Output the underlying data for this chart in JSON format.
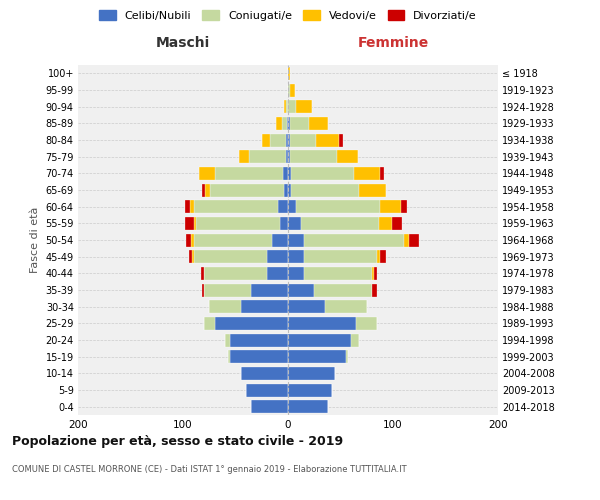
{
  "age_groups": [
    "0-4",
    "5-9",
    "10-14",
    "15-19",
    "20-24",
    "25-29",
    "30-34",
    "35-39",
    "40-44",
    "45-49",
    "50-54",
    "55-59",
    "60-64",
    "65-69",
    "70-74",
    "75-79",
    "80-84",
    "85-89",
    "90-94",
    "95-99",
    "100+"
  ],
  "birth_years": [
    "2014-2018",
    "2009-2013",
    "2004-2008",
    "1999-2003",
    "1994-1998",
    "1989-1993",
    "1984-1988",
    "1979-1983",
    "1974-1978",
    "1969-1973",
    "1964-1968",
    "1959-1963",
    "1954-1958",
    "1949-1953",
    "1944-1948",
    "1939-1943",
    "1934-1938",
    "1929-1933",
    "1924-1928",
    "1919-1923",
    "≤ 1918"
  ],
  "colors": {
    "celibi": "#4472c4",
    "coniugati": "#c5d9a0",
    "vedovi": "#ffc000",
    "divorziati": "#cc0000"
  },
  "maschi": {
    "celibi": [
      35,
      40,
      45,
      55,
      55,
      70,
      45,
      35,
      20,
      20,
      15,
      8,
      10,
      4,
      5,
      2,
      2,
      1,
      0,
      0,
      0
    ],
    "coniugati": [
      0,
      0,
      0,
      2,
      5,
      10,
      30,
      45,
      60,
      70,
      75,
      80,
      80,
      70,
      65,
      35,
      15,
      5,
      2,
      0,
      0
    ],
    "vedovi": [
      0,
      0,
      0,
      0,
      0,
      0,
      0,
      0,
      0,
      1,
      2,
      2,
      3,
      5,
      15,
      10,
      8,
      5,
      2,
      0,
      0
    ],
    "divorziati": [
      0,
      0,
      0,
      0,
      0,
      0,
      0,
      2,
      3,
      3,
      5,
      8,
      5,
      3,
      0,
      0,
      0,
      0,
      0,
      0,
      0
    ]
  },
  "femmine": {
    "celibi": [
      38,
      42,
      45,
      55,
      60,
      65,
      35,
      25,
      15,
      15,
      15,
      12,
      8,
      3,
      3,
      2,
      2,
      2,
      0,
      0,
      0
    ],
    "coniugati": [
      0,
      0,
      0,
      2,
      8,
      20,
      40,
      55,
      65,
      70,
      95,
      75,
      80,
      65,
      60,
      45,
      25,
      18,
      8,
      2,
      0
    ],
    "vedovi": [
      0,
      0,
      0,
      0,
      0,
      0,
      0,
      0,
      2,
      3,
      5,
      12,
      20,
      25,
      25,
      20,
      22,
      18,
      15,
      5,
      2
    ],
    "divorziati": [
      0,
      0,
      0,
      0,
      0,
      0,
      0,
      5,
      3,
      5,
      10,
      10,
      5,
      0,
      3,
      0,
      3,
      0,
      0,
      0,
      0
    ]
  },
  "title": "Popolazione per età, sesso e stato civile - 2019",
  "subtitle": "COMUNE DI CASTEL MORRONE (CE) - Dati ISTAT 1° gennaio 2019 - Elaborazione TUTTITALIA.IT",
  "xlabel_left": "Maschi",
  "xlabel_right": "Femmine",
  "ylabel_left": "Fasce di età",
  "xlim": 200,
  "legend_labels": [
    "Celibi/Nubili",
    "Coniugati/e",
    "Vedovi/e",
    "Divorziati/e"
  ],
  "bg_color": "#f0f0f0",
  "maschi_header_color": "#333333",
  "femmine_header_color": "#cc3333"
}
